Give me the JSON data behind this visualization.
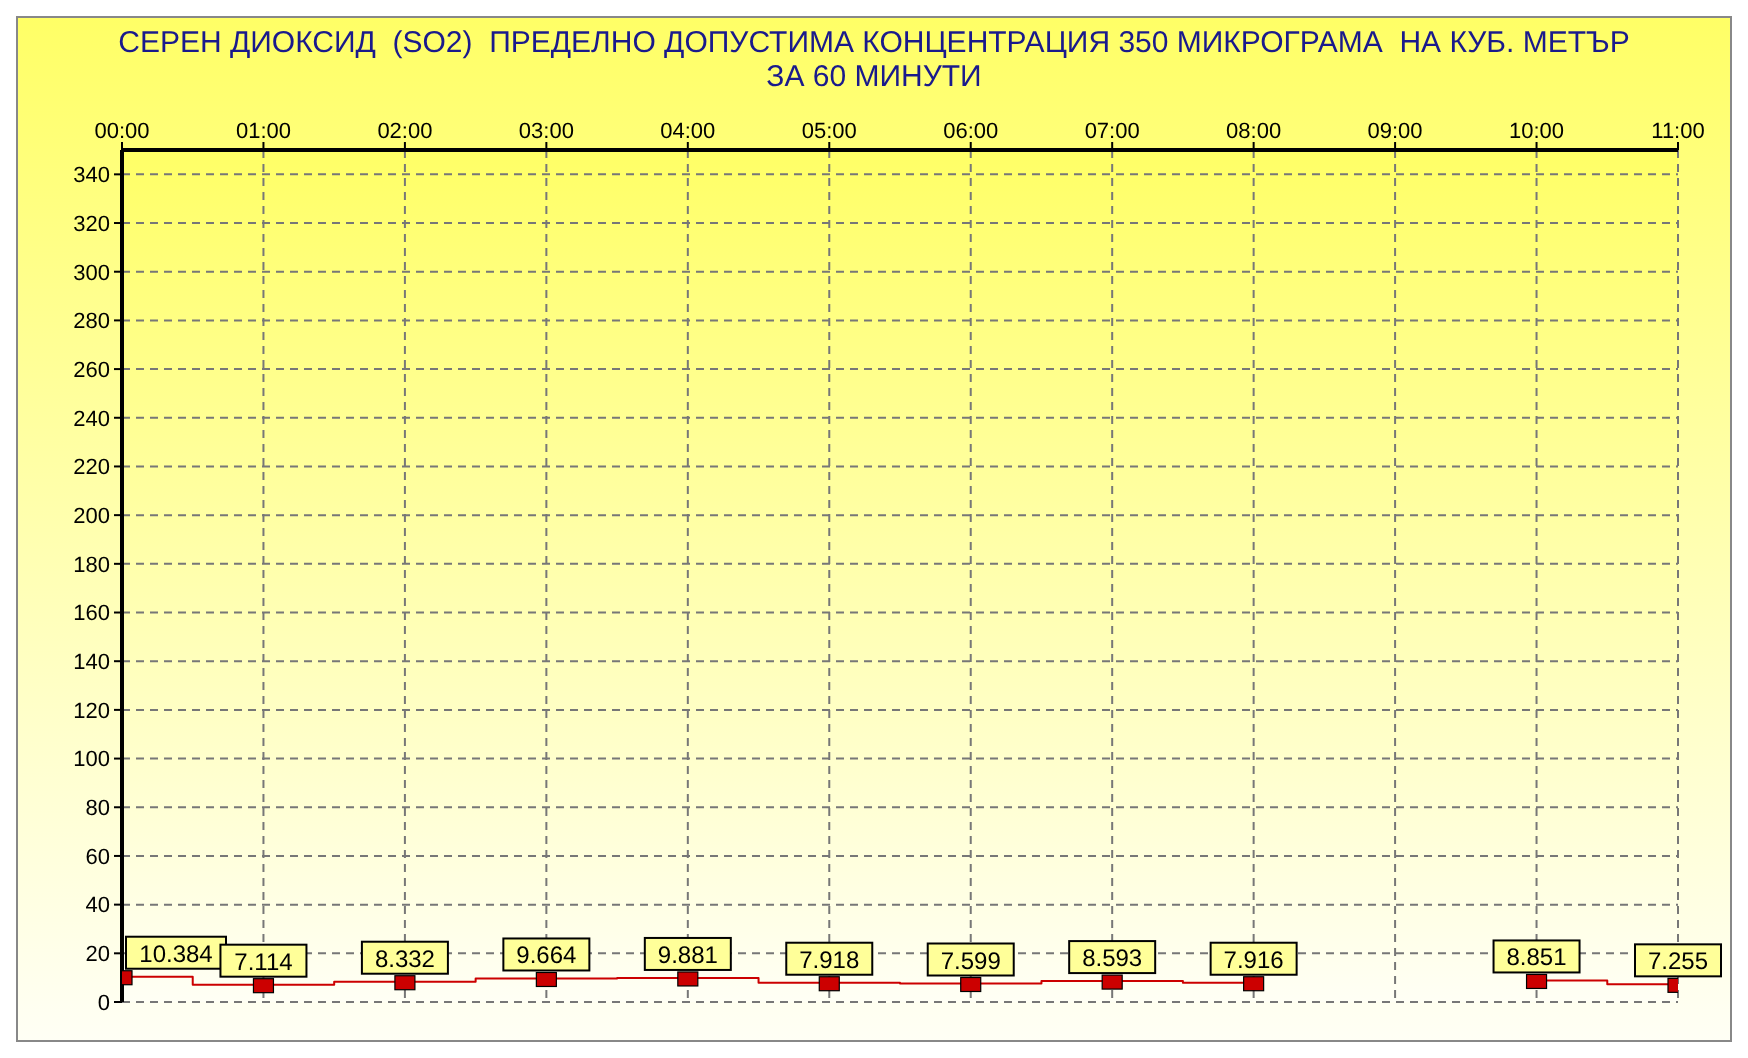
{
  "chart_data": {
    "type": "step",
    "title": "СЕРЕН ДИОКСИД  (SO2)  ПРЕДЕЛНО ДОПУСТИМА КОНЦЕНТРАЦИЯ 350 МИКРОГРАМА  НА КУБ. МЕТЪР ЗА 60 МИНУТИ",
    "x": [
      0,
      1,
      2,
      3,
      4,
      5,
      6,
      7,
      8,
      9,
      10,
      11
    ],
    "series": [
      {
        "color": "#cc0000",
        "values": [
          10.384,
          7.114,
          8.332,
          9.664,
          9.881,
          7.918,
          7.599,
          8.593,
          7.916,
          null,
          8.851,
          7.255
        ]
      }
    ],
    "xlim": [
      0,
      11
    ],
    "xticks": [
      {
        "value": 0,
        "label": "00:00"
      },
      {
        "value": 1,
        "label": "01:00"
      },
      {
        "value": 2,
        "label": "02:00"
      },
      {
        "value": 3,
        "label": "03:00"
      },
      {
        "value": 4,
        "label": "04:00"
      },
      {
        "value": 5,
        "label": "05:00"
      },
      {
        "value": 6,
        "label": "06:00"
      },
      {
        "value": 7,
        "label": "07:00"
      },
      {
        "value": 8,
        "label": "08:00"
      },
      {
        "value": 9,
        "label": "09:00"
      },
      {
        "value": 10,
        "label": "10:00"
      },
      {
        "value": 11,
        "label": "11:00"
      }
    ],
    "ylim": [
      0,
      350
    ],
    "yticks": [
      0,
      20,
      40,
      60,
      80,
      100,
      120,
      140,
      160,
      180,
      200,
      220,
      240,
      260,
      280,
      300,
      320,
      340
    ],
    "grid": true,
    "data_labels": true,
    "marker": "square",
    "legend": false
  }
}
